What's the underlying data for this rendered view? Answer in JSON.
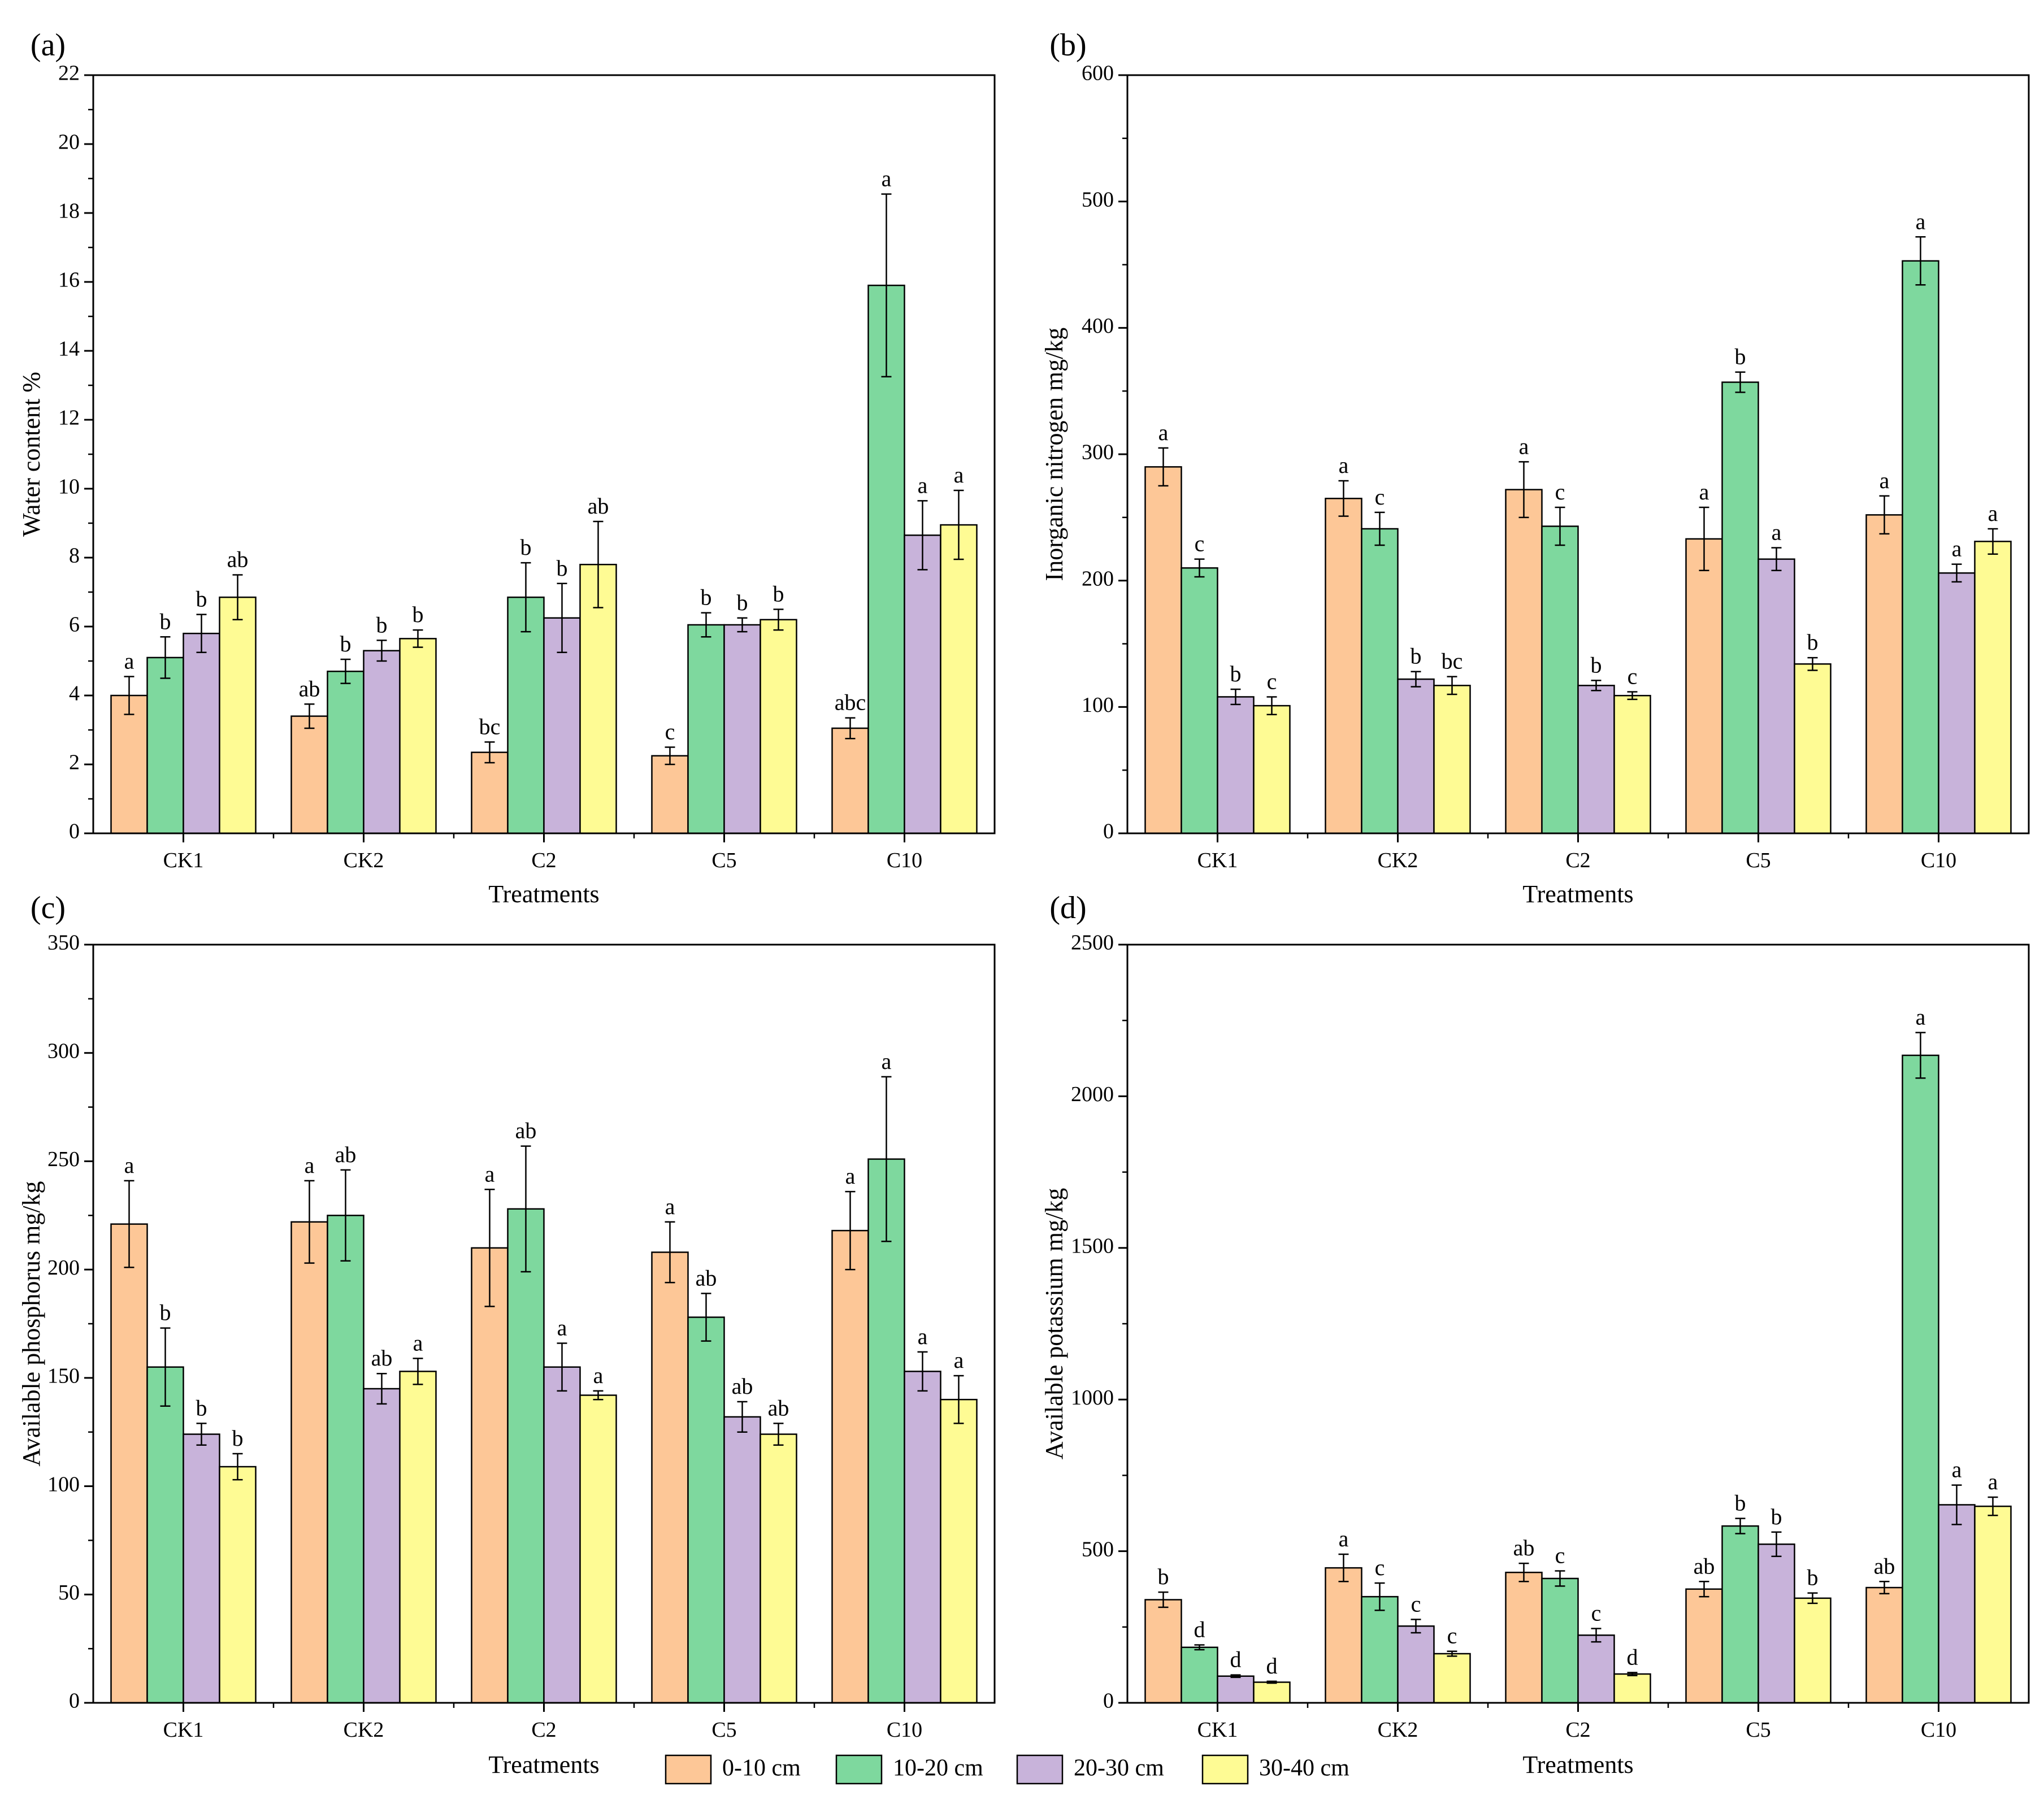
{
  "legend": [
    {
      "label": "0-10 cm",
      "color": "#FDC797"
    },
    {
      "label": "10-20 cm",
      "color": "#7ED89E"
    },
    {
      "label": "20-30 cm",
      "color": "#C8B3DA"
    },
    {
      "label": "30-40 cm",
      "color": "#FEFB94"
    }
  ],
  "chart_data": [
    {
      "type": "bar",
      "panel": "(a)",
      "xlabel": "Treatments",
      "ylabel": "Water content %",
      "categories": [
        "CK1",
        "CK2",
        "C2",
        "C5",
        "C10"
      ],
      "ylim": [
        0,
        22
      ],
      "yticks": [
        0,
        2,
        4,
        6,
        8,
        10,
        12,
        14,
        16,
        18,
        20,
        22
      ],
      "series": [
        {
          "name": "0-10 cm",
          "values": [
            4.0,
            3.4,
            2.35,
            2.25,
            3.05
          ],
          "errors": [
            0.55,
            0.35,
            0.3,
            0.25,
            0.3
          ],
          "letters": [
            "a",
            "ab",
            "bc",
            "c",
            "abc"
          ]
        },
        {
          "name": "10-20 cm",
          "values": [
            5.1,
            4.7,
            6.85,
            6.05,
            15.9
          ],
          "errors": [
            0.6,
            0.35,
            1.0,
            0.35,
            2.65
          ],
          "letters": [
            "b",
            "b",
            "b",
            "b",
            "a"
          ]
        },
        {
          "name": "20-30 cm",
          "values": [
            5.8,
            5.3,
            6.25,
            6.05,
            8.65
          ],
          "errors": [
            0.55,
            0.3,
            1.0,
            0.2,
            1.0
          ],
          "letters": [
            "b",
            "b",
            "b",
            "b",
            "a"
          ]
        },
        {
          "name": "30-40 cm",
          "values": [
            6.85,
            5.65,
            7.8,
            6.2,
            8.95
          ],
          "errors": [
            0.65,
            0.25,
            1.25,
            0.3,
            1.0
          ],
          "letters": [
            "ab",
            "b",
            "ab",
            "b",
            "a"
          ]
        }
      ]
    },
    {
      "type": "bar",
      "panel": "(b)",
      "xlabel": "Treatments",
      "ylabel": "Inorganic nitrogen mg/kg",
      "categories": [
        "CK1",
        "CK2",
        "C2",
        "C5",
        "C10"
      ],
      "ylim": [
        0,
        600
      ],
      "yticks": [
        0,
        100,
        200,
        300,
        400,
        500,
        600
      ],
      "series": [
        {
          "name": "0-10 cm",
          "values": [
            290,
            265,
            272,
            233,
            252
          ],
          "errors": [
            15,
            14,
            22,
            25,
            15
          ],
          "letters": [
            "a",
            "a",
            "a",
            "a",
            "a"
          ]
        },
        {
          "name": "10-20 cm",
          "values": [
            210,
            241,
            243,
            357,
            453
          ],
          "errors": [
            7,
            13,
            15,
            8,
            19
          ],
          "letters": [
            "c",
            "c",
            "c",
            "b",
            "a"
          ]
        },
        {
          "name": "20-30 cm",
          "values": [
            108,
            122,
            117,
            217,
            206
          ],
          "errors": [
            6,
            6,
            4,
            9,
            7
          ],
          "letters": [
            "b",
            "b",
            "b",
            "a",
            "a"
          ]
        },
        {
          "name": "30-40 cm",
          "values": [
            101,
            117,
            109,
            134,
            231
          ],
          "errors": [
            7,
            7,
            3,
            5,
            10
          ],
          "letters": [
            "c",
            "bc",
            "c",
            "b",
            "a"
          ]
        }
      ]
    },
    {
      "type": "bar",
      "panel": "(c)",
      "xlabel": "Treatments",
      "ylabel": "Available phosphorus mg/kg",
      "categories": [
        "CK1",
        "CK2",
        "C2",
        "C5",
        "C10"
      ],
      "ylim": [
        0,
        350
      ],
      "yticks": [
        0,
        50,
        100,
        150,
        200,
        250,
        300,
        350
      ],
      "series": [
        {
          "name": "0-10 cm",
          "values": [
            221,
            222,
            210,
            208,
            218
          ],
          "errors": [
            20,
            19,
            27,
            14,
            18
          ],
          "letters": [
            "a",
            "a",
            "a",
            "a",
            "a"
          ]
        },
        {
          "name": "10-20 cm",
          "values": [
            155,
            225,
            228,
            178,
            251
          ],
          "errors": [
            18,
            21,
            29,
            11,
            38
          ],
          "letters": [
            "b",
            "ab",
            "ab",
            "ab",
            "a"
          ]
        },
        {
          "name": "20-30 cm",
          "values": [
            124,
            145,
            155,
            132,
            153
          ],
          "errors": [
            5,
            7,
            11,
            7,
            9
          ],
          "letters": [
            "b",
            "ab",
            "a",
            "ab",
            "a"
          ]
        },
        {
          "name": "30-40 cm",
          "values": [
            109,
            153,
            142,
            124,
            140
          ],
          "errors": [
            6,
            6,
            2,
            5,
            11
          ],
          "letters": [
            "b",
            "a",
            "a",
            "ab",
            "a"
          ]
        }
      ]
    },
    {
      "type": "bar",
      "panel": "(d)",
      "xlabel": "Treatments",
      "ylabel": "Available potassium mg/kg",
      "categories": [
        "CK1",
        "CK2",
        "C2",
        "C5",
        "C10"
      ],
      "ylim": [
        0,
        2500
      ],
      "yticks": [
        0,
        500,
        1000,
        1500,
        2000,
        2500
      ],
      "series": [
        {
          "name": "0-10 cm",
          "values": [
            340,
            445,
            430,
            375,
            380
          ],
          "errors": [
            25,
            45,
            30,
            25,
            20
          ],
          "letters": [
            "b",
            "a",
            "ab",
            "ab",
            "ab"
          ]
        },
        {
          "name": "10-20 cm",
          "values": [
            183,
            350,
            410,
            583,
            2135
          ],
          "errors": [
            8,
            45,
            25,
            25,
            75
          ],
          "letters": [
            "d",
            "c",
            "c",
            "b",
            "a"
          ]
        },
        {
          "name": "20-30 cm",
          "values": [
            88,
            253,
            223,
            523,
            653
          ],
          "errors": [
            4,
            22,
            22,
            40,
            65
          ],
          "letters": [
            "d",
            "c",
            "c",
            "b",
            "a"
          ]
        },
        {
          "name": "30-40 cm",
          "values": [
            68,
            162,
            95,
            345,
            648
          ],
          "errors": [
            3,
            8,
            5,
            17,
            30
          ],
          "letters": [
            "d",
            "c",
            "d",
            "b",
            "a"
          ]
        }
      ]
    }
  ]
}
